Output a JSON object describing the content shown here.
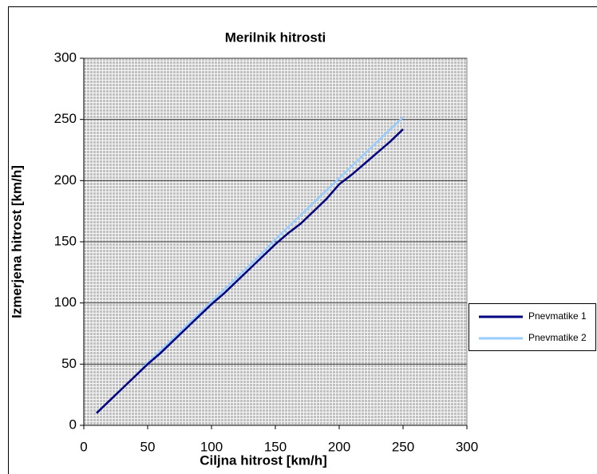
{
  "chart_data": {
    "type": "line",
    "title": "Merilnik hitrosti",
    "xlabel": "Ciljna hitrost [km/h]",
    "ylabel": "Izmerjena hitrost [km/h]",
    "x": [
      10,
      20,
      30,
      40,
      50,
      60,
      70,
      80,
      90,
      100,
      110,
      120,
      130,
      140,
      150,
      160,
      170,
      180,
      190,
      200,
      210,
      220,
      230,
      240,
      250
    ],
    "series": [
      {
        "name": "Pnevmatike 1",
        "color": "#000080",
        "values": [
          10,
          20,
          30,
          40,
          50,
          59,
          69,
          79,
          89,
          99,
          108,
          118,
          128,
          138,
          148,
          157,
          165,
          175,
          185,
          197,
          205,
          214,
          223,
          232,
          242
        ]
      },
      {
        "name": "Pnevmatike 2",
        "color": "#99ccff",
        "values": [
          10,
          20,
          30,
          40,
          51,
          61,
          71,
          81,
          91,
          101,
          111,
          121,
          131,
          141,
          152,
          162,
          172,
          182,
          192,
          202,
          212,
          222,
          232,
          242,
          252
        ]
      }
    ],
    "xlim": [
      0,
      300
    ],
    "xticks": [
      0,
      50,
      100,
      150,
      200,
      250,
      300
    ],
    "ylim": [
      0,
      300
    ],
    "yticks": [
      0,
      50,
      100,
      150,
      200,
      250,
      300
    ],
    "grid": true,
    "legend": "right"
  }
}
